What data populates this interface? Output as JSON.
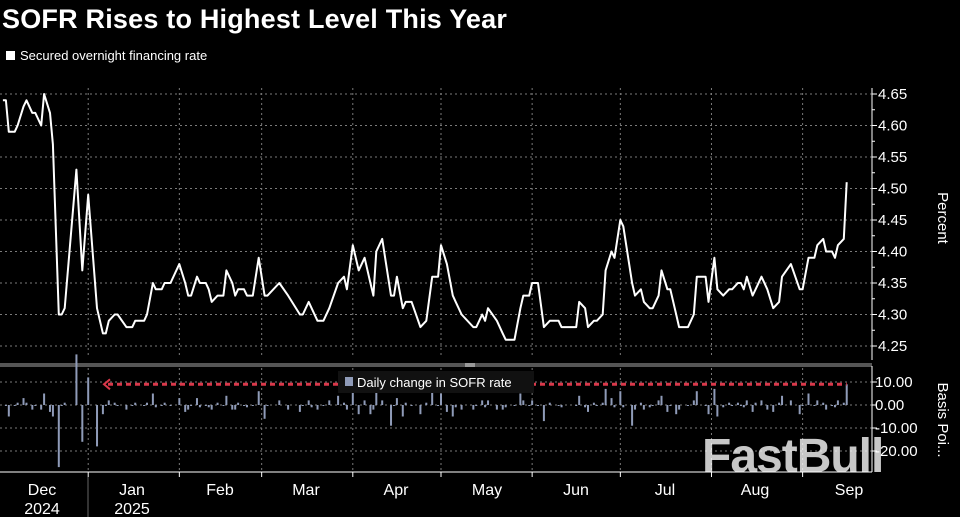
{
  "title": "SOFR Rises to Highest Level This Year",
  "legend": "Secured overnight financing rate",
  "watermark_logo": "FastBull",
  "colors": {
    "background": "#000000",
    "line": "#ffffff",
    "bars": "#8f9bb8",
    "reference_arrow": "#d9384a",
    "grid": "#7a7a7a"
  },
  "chart_data": [
    {
      "type": "line",
      "ylabel": "Percent",
      "ylim": [
        4.22,
        4.67
      ],
      "yticks": [
        "4.25",
        "4.30",
        "4.35",
        "4.40",
        "4.45",
        "4.50",
        "4.55",
        "4.60",
        "4.65"
      ],
      "xlim": [
        "2024-12-02",
        "2025-09-19"
      ],
      "xticks": [
        {
          "label": "Dec",
          "year": "2024"
        },
        {
          "label": "Jan",
          "year": "2025"
        },
        {
          "label": "Feb"
        },
        {
          "label": "Mar"
        },
        {
          "label": "Apr"
        },
        {
          "label": "May"
        },
        {
          "label": "Jun"
        },
        {
          "label": "Jul"
        },
        {
          "label": "Aug"
        },
        {
          "label": "Sep"
        }
      ],
      "grid": true,
      "legend_position": "top-left",
      "series": [
        {
          "name": "Secured overnight financing rate",
          "points": [
            [
              "2024-12-03",
              4.64
            ],
            [
              "2024-12-04",
              4.64
            ],
            [
              "2024-12-05",
              4.59
            ],
            [
              "2024-12-07",
              4.59
            ],
            [
              "2024-12-08",
              4.6
            ],
            [
              "2024-12-10",
              4.63
            ],
            [
              "2024-12-11",
              4.64
            ],
            [
              "2024-12-13",
              4.62
            ],
            [
              "2024-12-14",
              4.62
            ],
            [
              "2024-12-16",
              4.6
            ],
            [
              "2024-12-17",
              4.65
            ],
            [
              "2024-12-19",
              4.62
            ],
            [
              "2024-12-20",
              4.57
            ],
            [
              "2024-12-22",
              4.3
            ],
            [
              "2024-12-23",
              4.3
            ],
            [
              "2024-12-24",
              4.31
            ],
            [
              "2024-12-28",
              4.53
            ],
            [
              "2024-12-30",
              4.37
            ],
            [
              "2025-01-01",
              4.49
            ],
            [
              "2025-01-04",
              4.31
            ],
            [
              "2025-01-06",
              4.27
            ],
            [
              "2025-01-07",
              4.27
            ],
            [
              "2025-01-08",
              4.29
            ],
            [
              "2025-01-10",
              4.3
            ],
            [
              "2025-01-11",
              4.3
            ],
            [
              "2025-01-14",
              4.28
            ],
            [
              "2025-01-16",
              4.28
            ],
            [
              "2025-01-17",
              4.29
            ],
            [
              "2025-01-20",
              4.29
            ],
            [
              "2025-01-21",
              4.3
            ],
            [
              "2025-01-23",
              4.35
            ],
            [
              "2025-01-24",
              4.34
            ],
            [
              "2025-01-26",
              4.34
            ],
            [
              "2025-01-27",
              4.35
            ],
            [
              "2025-01-29",
              4.35
            ],
            [
              "2025-02-01",
              4.38
            ],
            [
              "2025-02-03",
              4.35
            ],
            [
              "2025-02-04",
              4.33
            ],
            [
              "2025-02-05",
              4.33
            ],
            [
              "2025-02-07",
              4.36
            ],
            [
              "2025-02-08",
              4.35
            ],
            [
              "2025-02-10",
              4.35
            ],
            [
              "2025-02-11",
              4.34
            ],
            [
              "2025-02-12",
              4.32
            ],
            [
              "2025-02-14",
              4.33
            ],
            [
              "2025-02-16",
              4.33
            ],
            [
              "2025-02-17",
              4.37
            ],
            [
              "2025-02-19",
              4.35
            ],
            [
              "2025-02-20",
              4.33
            ],
            [
              "2025-02-21",
              4.34
            ],
            [
              "2025-02-23",
              4.34
            ],
            [
              "2025-02-24",
              4.33
            ],
            [
              "2025-02-26",
              4.33
            ],
            [
              "2025-02-28",
              4.39
            ],
            [
              "2025-03-02",
              4.33
            ],
            [
              "2025-03-03",
              4.33
            ],
            [
              "2025-03-07",
              4.35
            ],
            [
              "2025-03-10",
              4.33
            ],
            [
              "2025-03-14",
              4.3
            ],
            [
              "2025-03-15",
              4.3
            ],
            [
              "2025-03-17",
              4.32
            ],
            [
              "2025-03-18",
              4.31
            ],
            [
              "2025-03-20",
              4.29
            ],
            [
              "2025-03-22",
              4.29
            ],
            [
              "2025-03-24",
              4.31
            ],
            [
              "2025-03-27",
              4.35
            ],
            [
              "2025-03-29",
              4.36
            ],
            [
              "2025-03-30",
              4.34
            ],
            [
              "2025-04-01",
              4.41
            ],
            [
              "2025-04-03",
              4.37
            ],
            [
              "2025-04-05",
              4.39
            ],
            [
              "2025-04-07",
              4.35
            ],
            [
              "2025-04-08",
              4.33
            ],
            [
              "2025-04-09",
              4.4
            ],
            [
              "2025-04-11",
              4.42
            ],
            [
              "2025-04-14",
              4.33
            ],
            [
              "2025-04-15",
              4.33
            ],
            [
              "2025-04-16",
              4.36
            ],
            [
              "2025-04-18",
              4.31
            ],
            [
              "2025-04-19",
              4.32
            ],
            [
              "2025-04-21",
              4.32
            ],
            [
              "2025-04-24",
              4.28
            ],
            [
              "2025-04-26",
              4.29
            ],
            [
              "2025-04-28",
              4.36
            ],
            [
              "2025-04-30",
              4.36
            ],
            [
              "2025-05-01",
              4.41
            ],
            [
              "2025-05-03",
              4.38
            ],
            [
              "2025-05-05",
              4.33
            ],
            [
              "2025-05-06",
              4.32
            ],
            [
              "2025-05-08",
              4.3
            ],
            [
              "2025-05-12",
              4.28
            ],
            [
              "2025-05-13",
              4.28
            ],
            [
              "2025-05-15",
              4.3
            ],
            [
              "2025-05-16",
              4.29
            ],
            [
              "2025-05-17",
              4.31
            ],
            [
              "2025-05-20",
              4.29
            ],
            [
              "2025-05-22",
              4.27
            ],
            [
              "2025-05-23",
              4.26
            ],
            [
              "2025-05-26",
              4.26
            ],
            [
              "2025-05-28",
              4.31
            ],
            [
              "2025-05-29",
              4.33
            ],
            [
              "2025-05-31",
              4.33
            ],
            [
              "2025-06-01",
              4.35
            ],
            [
              "2025-06-03",
              4.35
            ],
            [
              "2025-06-05",
              4.28
            ],
            [
              "2025-06-07",
              4.29
            ],
            [
              "2025-06-10",
              4.29
            ],
            [
              "2025-06-11",
              4.28
            ],
            [
              "2025-06-16",
              4.28
            ],
            [
              "2025-06-17",
              4.32
            ],
            [
              "2025-06-19",
              4.31
            ],
            [
              "2025-06-20",
              4.28
            ],
            [
              "2025-06-22",
              4.29
            ],
            [
              "2025-06-23",
              4.29
            ],
            [
              "2025-06-25",
              4.3
            ],
            [
              "2025-06-26",
              4.37
            ],
            [
              "2025-06-28",
              4.4
            ],
            [
              "2025-06-29",
              4.39
            ],
            [
              "2025-07-01",
              4.45
            ],
            [
              "2025-07-02",
              4.44
            ],
            [
              "2025-07-05",
              4.35
            ],
            [
              "2025-07-06",
              4.33
            ],
            [
              "2025-07-08",
              4.34
            ],
            [
              "2025-07-09",
              4.32
            ],
            [
              "2025-07-11",
              4.31
            ],
            [
              "2025-07-12",
              4.31
            ],
            [
              "2025-07-14",
              4.33
            ],
            [
              "2025-07-15",
              4.37
            ],
            [
              "2025-07-17",
              4.34
            ],
            [
              "2025-07-18",
              4.34
            ],
            [
              "2025-07-20",
              4.3
            ],
            [
              "2025-07-21",
              4.28
            ],
            [
              "2025-07-24",
              4.28
            ],
            [
              "2025-07-26",
              4.3
            ],
            [
              "2025-07-27",
              4.36
            ],
            [
              "2025-07-30",
              4.36
            ],
            [
              "2025-07-31",
              4.32
            ],
            [
              "2025-08-02",
              4.39
            ],
            [
              "2025-08-03",
              4.34
            ],
            [
              "2025-08-05",
              4.33
            ],
            [
              "2025-08-07",
              4.34
            ],
            [
              "2025-08-08",
              4.34
            ],
            [
              "2025-08-10",
              4.35
            ],
            [
              "2025-08-11",
              4.35
            ],
            [
              "2025-08-12",
              4.34
            ],
            [
              "2025-08-13",
              4.36
            ],
            [
              "2025-08-15",
              4.33
            ],
            [
              "2025-08-16",
              4.34
            ],
            [
              "2025-08-18",
              4.36
            ],
            [
              "2025-08-20",
              4.34
            ],
            [
              "2025-08-22",
              4.31
            ],
            [
              "2025-08-24",
              4.32
            ],
            [
              "2025-08-25",
              4.36
            ],
            [
              "2025-08-28",
              4.38
            ],
            [
              "2025-08-31",
              4.34
            ],
            [
              "2025-09-01",
              4.34
            ],
            [
              "2025-09-03",
              4.39
            ],
            [
              "2025-09-05",
              4.39
            ],
            [
              "2025-09-06",
              4.41
            ],
            [
              "2025-09-08",
              4.42
            ],
            [
              "2025-09-09",
              4.4
            ],
            [
              "2025-09-11",
              4.4
            ],
            [
              "2025-09-12",
              4.39
            ],
            [
              "2025-09-13",
              4.41
            ],
            [
              "2025-09-15",
              4.42
            ],
            [
              "2025-09-16",
              4.51
            ]
          ]
        }
      ]
    },
    {
      "type": "bar",
      "ylabel": "Basis Poi...",
      "ylim": [
        -28,
        15
      ],
      "yticks": [
        "10.00",
        "0.00",
        "-10.00",
        "-20.00"
      ],
      "grid": true,
      "legend_position": "top-center",
      "series": [
        {
          "name": "Daily change in SOFR rate"
        }
      ],
      "reference_line_bp": 9
    }
  ]
}
